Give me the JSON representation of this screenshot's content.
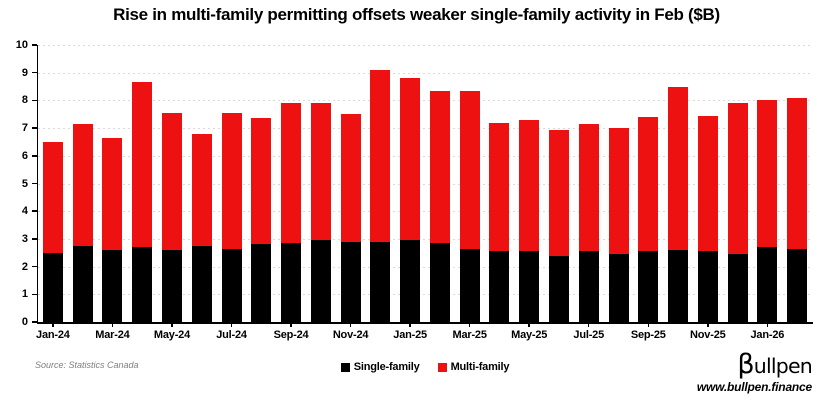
{
  "title": "Rise in multi-family permitting offsets weaker single-family activity in Feb ($B)",
  "source": "Source: Statistics Canada",
  "legend": {
    "single_label": "Single-family",
    "multi_label": "Multi-family"
  },
  "branding": {
    "logo_beta": "β",
    "logo_rest": "ullpen",
    "website": "www.bullpen.finance"
  },
  "colors": {
    "single": "#000000",
    "multi": "#ee1111",
    "grid": "#dbdbdb",
    "axis": "#000000",
    "source_text": "#7f7f7f"
  },
  "chart_data": {
    "type": "bar",
    "stacked": true,
    "title": "Rise in multi-family permitting offsets weaker single-family activity in Feb ($B)",
    "categories": [
      "Jan-24",
      "Feb-24",
      "Mar-24",
      "Apr-24",
      "May-24",
      "Jun-24",
      "Jul-24",
      "Aug-24",
      "Sep-24",
      "Oct-24",
      "Nov-24",
      "Dec-24",
      "Jan-25",
      "Feb-25",
      "Mar-25",
      "Apr-25",
      "May-25",
      "Jun-25",
      "Jul-25",
      "Aug-25",
      "Sep-25",
      "Oct-25",
      "Nov-25",
      "Dec-25",
      "Jan-26",
      "Feb-26"
    ],
    "series": [
      {
        "name": "Single-family",
        "color_key": "single",
        "values": [
          2.5,
          2.75,
          2.6,
          2.7,
          2.6,
          2.75,
          2.65,
          2.8,
          2.85,
          2.95,
          2.9,
          2.9,
          2.95,
          2.85,
          2.65,
          2.55,
          2.55,
          2.4,
          2.55,
          2.45,
          2.55,
          2.6,
          2.55,
          2.45,
          2.7,
          2.65
        ]
      },
      {
        "name": "Multi-family",
        "color_key": "multi",
        "values": [
          4.0,
          4.4,
          4.05,
          5.95,
          4.95,
          4.05,
          4.9,
          4.55,
          5.05,
          4.95,
          4.6,
          6.2,
          5.85,
          5.5,
          5.7,
          4.65,
          4.75,
          4.55,
          4.6,
          4.55,
          4.85,
          5.9,
          4.9,
          5.45,
          5.3,
          5.45
        ]
      }
    ],
    "ylim": [
      0,
      10
    ],
    "yticks": [
      0,
      1,
      2,
      3,
      4,
      5,
      6,
      7,
      8,
      9,
      10
    ],
    "xtick_labels": [
      "Jan-24",
      "Mar-24",
      "May-24",
      "Jul-24",
      "Sep-24",
      "Nov-24",
      "Jan-25",
      "Mar-25",
      "May-25",
      "Jul-25",
      "Sep-25",
      "Nov-25",
      "Jan-26"
    ],
    "grid": "horizontal-dashed",
    "legend_position": "bottom-center"
  }
}
